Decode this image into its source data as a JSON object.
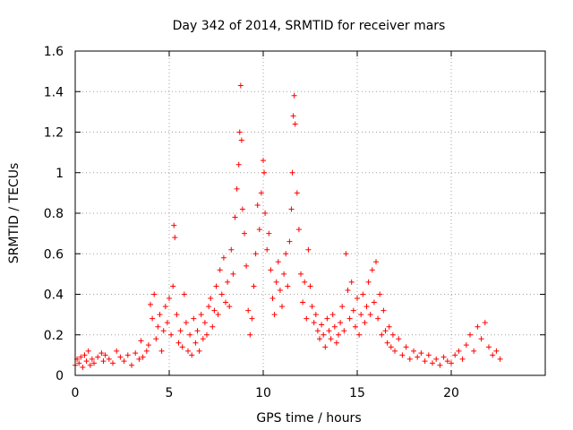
{
  "chart_data": {
    "type": "scatter",
    "title": "Day 342 of 2014, SRMTID for receiver mars",
    "xlabel": "GPS time / hours",
    "ylabel": "SRMTID / TECUs",
    "xlim": [
      0,
      25
    ],
    "ylim": [
      0,
      1.6
    ],
    "xticks": [
      0,
      5,
      10,
      15,
      20
    ],
    "xtick_labels": [
      "0",
      "5",
      "10",
      "15",
      "20"
    ],
    "yticks": [
      0,
      0.2,
      0.4,
      0.6,
      0.8,
      1.0,
      1.2,
      1.4,
      1.6
    ],
    "ytick_labels": [
      "0",
      "0.2",
      "0.4",
      "0.6",
      "0.8",
      "1",
      "1.2",
      "1.4",
      "1.6"
    ],
    "grid": true,
    "marker": "+",
    "marker_color": "#ff0000",
    "series": [
      {
        "name": "SRMTID",
        "x": [
          0.0,
          0.1,
          0.2,
          0.3,
          0.4,
          0.5,
          0.6,
          0.7,
          0.8,
          0.9,
          1.0,
          1.2,
          1.4,
          1.5,
          1.6,
          1.8,
          2.0,
          2.2,
          2.4,
          2.6,
          2.8,
          3.0,
          3.2,
          3.4,
          3.5,
          3.6,
          3.8,
          3.9,
          4.0,
          4.1,
          4.2,
          4.3,
          4.4,
          4.5,
          4.6,
          4.7,
          4.8,
          4.9,
          5.0,
          5.1,
          5.2,
          5.25,
          5.3,
          5.4,
          5.5,
          5.6,
          5.7,
          5.8,
          5.9,
          6.0,
          6.1,
          6.2,
          6.3,
          6.4,
          6.5,
          6.6,
          6.7,
          6.8,
          6.9,
          7.0,
          7.1,
          7.2,
          7.3,
          7.4,
          7.5,
          7.6,
          7.7,
          7.8,
          7.9,
          8.0,
          8.1,
          8.2,
          8.3,
          8.4,
          8.5,
          8.6,
          8.7,
          8.75,
          8.8,
          8.85,
          8.9,
          9.0,
          9.1,
          9.2,
          9.3,
          9.4,
          9.5,
          9.6,
          9.7,
          9.8,
          9.9,
          10.0,
          10.05,
          10.1,
          10.2,
          10.3,
          10.4,
          10.5,
          10.6,
          10.7,
          10.8,
          10.9,
          11.0,
          11.1,
          11.2,
          11.3,
          11.4,
          11.5,
          11.55,
          11.6,
          11.65,
          11.7,
          11.8,
          11.9,
          12.0,
          12.1,
          12.2,
          12.3,
          12.4,
          12.5,
          12.6,
          12.7,
          12.8,
          12.9,
          13.0,
          13.1,
          13.2,
          13.3,
          13.4,
          13.5,
          13.6,
          13.7,
          13.8,
          13.9,
          14.0,
          14.1,
          14.2,
          14.3,
          14.4,
          14.5,
          14.6,
          14.7,
          14.8,
          14.9,
          15.0,
          15.1,
          15.2,
          15.3,
          15.4,
          15.5,
          15.6,
          15.7,
          15.8,
          15.9,
          16.0,
          16.1,
          16.2,
          16.3,
          16.4,
          16.5,
          16.6,
          16.7,
          16.8,
          16.9,
          17.0,
          17.2,
          17.4,
          17.6,
          17.8,
          18.0,
          18.2,
          18.4,
          18.6,
          18.8,
          19.0,
          19.2,
          19.4,
          19.6,
          19.8,
          20.0,
          20.2,
          20.4,
          20.6,
          20.8,
          21.0,
          21.2,
          21.4,
          21.6,
          21.8,
          22.0,
          22.2,
          22.4,
          22.6
        ],
        "y": [
          0.05,
          0.08,
          0.06,
          0.09,
          0.04,
          0.1,
          0.07,
          0.12,
          0.05,
          0.08,
          0.06,
          0.09,
          0.11,
          0.07,
          0.1,
          0.08,
          0.06,
          0.12,
          0.09,
          0.07,
          0.1,
          0.05,
          0.11,
          0.08,
          0.17,
          0.09,
          0.12,
          0.15,
          0.35,
          0.28,
          0.4,
          0.18,
          0.24,
          0.3,
          0.12,
          0.22,
          0.34,
          0.26,
          0.38,
          0.2,
          0.44,
          0.74,
          0.68,
          0.3,
          0.16,
          0.22,
          0.14,
          0.4,
          0.26,
          0.12,
          0.2,
          0.1,
          0.28,
          0.16,
          0.22,
          0.12,
          0.3,
          0.18,
          0.26,
          0.2,
          0.34,
          0.38,
          0.24,
          0.32,
          0.44,
          0.3,
          0.52,
          0.4,
          0.58,
          0.36,
          0.46,
          0.34,
          0.62,
          0.5,
          0.78,
          0.92,
          1.04,
          1.2,
          1.43,
          1.16,
          0.82,
          0.7,
          0.54,
          0.32,
          0.2,
          0.28,
          0.44,
          0.6,
          0.84,
          0.72,
          0.9,
          1.06,
          1.0,
          0.8,
          0.62,
          0.7,
          0.52,
          0.38,
          0.3,
          0.46,
          0.56,
          0.42,
          0.34,
          0.5,
          0.6,
          0.44,
          0.66,
          0.82,
          1.0,
          1.28,
          1.38,
          1.24,
          0.9,
          0.72,
          0.5,
          0.36,
          0.46,
          0.28,
          0.62,
          0.44,
          0.34,
          0.26,
          0.3,
          0.22,
          0.18,
          0.25,
          0.2,
          0.14,
          0.28,
          0.22,
          0.18,
          0.3,
          0.24,
          0.16,
          0.2,
          0.26,
          0.34,
          0.22,
          0.6,
          0.42,
          0.28,
          0.46,
          0.32,
          0.24,
          0.38,
          0.2,
          0.3,
          0.4,
          0.26,
          0.34,
          0.46,
          0.3,
          0.52,
          0.36,
          0.56,
          0.28,
          0.4,
          0.2,
          0.32,
          0.22,
          0.16,
          0.24,
          0.14,
          0.2,
          0.12,
          0.18,
          0.1,
          0.14,
          0.08,
          0.12,
          0.09,
          0.11,
          0.07,
          0.1,
          0.06,
          0.08,
          0.05,
          0.09,
          0.07,
          0.06,
          0.1,
          0.12,
          0.08,
          0.15,
          0.2,
          0.12,
          0.24,
          0.18,
          0.26,
          0.14,
          0.1,
          0.12,
          0.08
        ]
      }
    ]
  }
}
